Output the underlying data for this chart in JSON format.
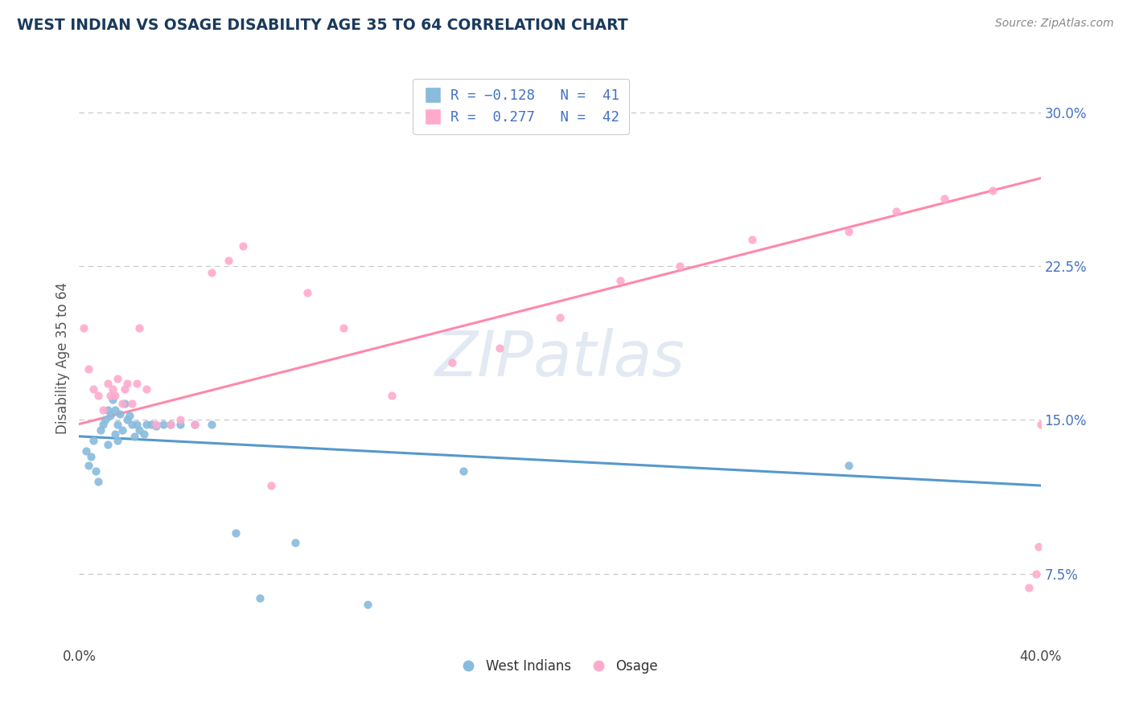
{
  "title": "WEST INDIAN VS OSAGE DISABILITY AGE 35 TO 64 CORRELATION CHART",
  "source_text": "Source: ZipAtlas.com",
  "ylabel": "Disability Age 35 to 64",
  "xlim": [
    0.0,
    0.4
  ],
  "ylim": [
    0.04,
    0.32
  ],
  "ytick_vals": [
    0.075,
    0.15,
    0.225,
    0.3
  ],
  "grid_color": "#c8c8c8",
  "background_color": "#ffffff",
  "watermark_text": "ZIPatlas",
  "legend_label1": "West Indians",
  "legend_label2": "Osage",
  "color_blue": "#88bbdd",
  "color_pink": "#ffaacc",
  "line_color_blue": "#5599cc",
  "line_color_pink": "#ff88aa",
  "title_color": "#1a3a5c",
  "source_color": "#888888",
  "ytick_color": "#4472c4",
  "label_color": "#555555",
  "west_indians_x": [
    0.003,
    0.004,
    0.005,
    0.006,
    0.007,
    0.008,
    0.009,
    0.01,
    0.011,
    0.012,
    0.012,
    0.013,
    0.014,
    0.015,
    0.015,
    0.016,
    0.016,
    0.017,
    0.018,
    0.019,
    0.02,
    0.021,
    0.022,
    0.023,
    0.024,
    0.025,
    0.027,
    0.028,
    0.03,
    0.032,
    0.035,
    0.038,
    0.042,
    0.048,
    0.055,
    0.065,
    0.075,
    0.09,
    0.12,
    0.16,
    0.32
  ],
  "west_indians_y": [
    0.135,
    0.128,
    0.132,
    0.14,
    0.125,
    0.12,
    0.145,
    0.148,
    0.15,
    0.155,
    0.138,
    0.152,
    0.16,
    0.155,
    0.143,
    0.148,
    0.14,
    0.153,
    0.145,
    0.158,
    0.15,
    0.152,
    0.148,
    0.142,
    0.148,
    0.145,
    0.143,
    0.148,
    0.148,
    0.147,
    0.148,
    0.148,
    0.148,
    0.148,
    0.148,
    0.095,
    0.063,
    0.09,
    0.06,
    0.125,
    0.128
  ],
  "osage_x": [
    0.002,
    0.004,
    0.006,
    0.008,
    0.01,
    0.012,
    0.013,
    0.014,
    0.015,
    0.016,
    0.018,
    0.019,
    0.02,
    0.022,
    0.024,
    0.025,
    0.028,
    0.032,
    0.038,
    0.042,
    0.048,
    0.055,
    0.062,
    0.068,
    0.08,
    0.095,
    0.11,
    0.13,
    0.155,
    0.175,
    0.2,
    0.225,
    0.25,
    0.28,
    0.32,
    0.34,
    0.36,
    0.38,
    0.395,
    0.398,
    0.399,
    0.4
  ],
  "osage_y": [
    0.195,
    0.175,
    0.165,
    0.162,
    0.155,
    0.168,
    0.162,
    0.165,
    0.162,
    0.17,
    0.158,
    0.165,
    0.168,
    0.158,
    0.168,
    0.195,
    0.165,
    0.148,
    0.148,
    0.15,
    0.148,
    0.222,
    0.228,
    0.235,
    0.118,
    0.212,
    0.195,
    0.162,
    0.178,
    0.185,
    0.2,
    0.218,
    0.225,
    0.238,
    0.242,
    0.252,
    0.258,
    0.262,
    0.068,
    0.075,
    0.088,
    0.148
  ],
  "wi_trend_x0": 0.0,
  "wi_trend_y0": 0.142,
  "wi_trend_x1": 0.4,
  "wi_trend_y1": 0.118,
  "os_trend_x0": 0.0,
  "os_trend_y0": 0.148,
  "os_trend_x1": 0.4,
  "os_trend_y1": 0.268
}
